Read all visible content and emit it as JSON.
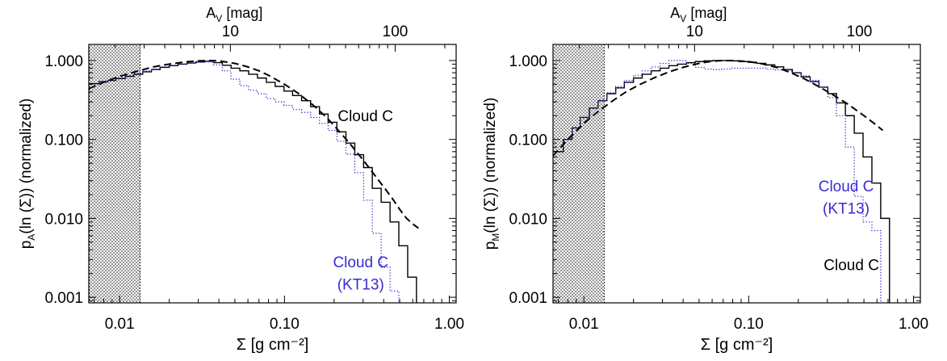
{
  "colors": {
    "axis": "#000000",
    "cloud": "#000000",
    "kt13": "#3a2bd6",
    "fit": "#000000",
    "hatch": "#000000"
  },
  "chart_data": [
    {
      "type": "line",
      "panel": "left",
      "xscale": "log",
      "yscale": "log",
      "xlim": [
        0.0065,
        1.1
      ],
      "ylim": [
        0.00085,
        1.6
      ],
      "xlabel": "Σ [g cm⁻²]",
      "ylabel_parts": {
        "p": "p",
        "sub": "A",
        "rest": "(ln (Σ)) (normalized)"
      },
      "top_xlabel_parts": {
        "a": "A",
        "sub": "V",
        "rest": " [mag]"
      },
      "xticks": [
        0.01,
        0.1,
        1.0
      ],
      "xtick_labels": [
        "0.01",
        "0.10",
        "1.00"
      ],
      "yticks": [
        0.001,
        0.01,
        0.1,
        1.0
      ],
      "ytick_labels": [
        "0.001",
        "0.010",
        "0.100",
        "1.000"
      ],
      "top_ticks": [
        10,
        100
      ],
      "top_tick_labels": [
        "10",
        "100"
      ],
      "av_per_sigma": 213,
      "shaded_region": [
        0.0065,
        0.0133
      ],
      "annotations": [
        {
          "text": "Cloud C",
          "x": 0.31,
          "y": 0.17,
          "color": "cloud"
        },
        {
          "text": "Cloud C",
          "x": 0.29,
          "y": 0.0024,
          "color": "kt13"
        },
        {
          "text": "(KT13)",
          "x": 0.29,
          "y": 0.00125,
          "color": "kt13"
        }
      ],
      "series": [
        {
          "name": "Cloud C",
          "style": "step-solid",
          "color": "cloud",
          "x": [
            0.0065,
            0.0075,
            0.0085,
            0.0095,
            0.0108,
            0.0122,
            0.0138,
            0.0156,
            0.0176,
            0.02,
            0.0226,
            0.0256,
            0.029,
            0.0328,
            0.037,
            0.042,
            0.0474,
            0.0536,
            0.0606,
            0.0686,
            0.0776,
            0.0878,
            0.0993,
            0.112,
            0.127,
            0.144,
            0.163,
            0.184,
            0.208,
            0.236,
            0.267,
            0.302,
            0.341,
            0.386,
            0.437,
            0.494,
            0.559,
            0.632
          ],
          "y": [
            0.51,
            0.54,
            0.56,
            0.59,
            0.63,
            0.67,
            0.72,
            0.77,
            0.82,
            0.86,
            0.9,
            0.93,
            0.96,
            0.98,
            0.94,
            0.87,
            0.8,
            0.74,
            0.67,
            0.6,
            0.53,
            0.47,
            0.41,
            0.36,
            0.31,
            0.26,
            0.21,
            0.165,
            0.125,
            0.09,
            0.064,
            0.044,
            0.024,
            0.016,
            0.009,
            0.0045,
            0.0018,
            0.0008
          ]
        },
        {
          "name": "Cloud C (KT13)",
          "style": "step-dotted",
          "color": "kt13",
          "x": [
            0.0065,
            0.0075,
            0.0085,
            0.0095,
            0.0108,
            0.0122,
            0.0138,
            0.0156,
            0.0176,
            0.02,
            0.0226,
            0.0256,
            0.029,
            0.0328,
            0.037,
            0.042,
            0.0474,
            0.0536,
            0.0606,
            0.0686,
            0.0776,
            0.0878,
            0.0993,
            0.112,
            0.127,
            0.144,
            0.163,
            0.184,
            0.208,
            0.236,
            0.267,
            0.302,
            0.341,
            0.386,
            0.437,
            0.494
          ],
          "y": [
            0.5,
            0.53,
            0.56,
            0.6,
            0.64,
            0.69,
            0.74,
            0.78,
            0.83,
            0.87,
            0.9,
            0.93,
            0.95,
            0.96,
            0.88,
            0.74,
            0.58,
            0.48,
            0.42,
            0.38,
            0.33,
            0.3,
            0.27,
            0.24,
            0.22,
            0.19,
            0.16,
            0.13,
            0.095,
            0.065,
            0.038,
            0.017,
            0.0065,
            0.0024,
            0.0012,
            0.0008
          ]
        },
        {
          "name": "fit",
          "style": "dashed",
          "color": "fit",
          "x": [
            0.0065,
            0.008,
            0.01,
            0.013,
            0.016,
            0.02,
            0.025,
            0.03,
            0.035,
            0.04,
            0.05,
            0.06,
            0.07,
            0.08,
            0.1,
            0.12,
            0.15,
            0.18,
            0.2,
            0.25,
            0.3,
            0.35,
            0.4,
            0.45,
            0.5,
            0.55,
            0.6,
            0.65
          ],
          "y": [
            0.44,
            0.53,
            0.63,
            0.74,
            0.83,
            0.9,
            0.96,
            0.99,
            1.0,
            0.99,
            0.92,
            0.83,
            0.74,
            0.65,
            0.5,
            0.39,
            0.27,
            0.19,
            0.15,
            0.088,
            0.055,
            0.036,
            0.025,
            0.018,
            0.013,
            0.01,
            0.0085,
            0.0075
          ]
        }
      ]
    },
    {
      "type": "line",
      "panel": "right",
      "xscale": "log",
      "yscale": "log",
      "xlim": [
        0.0065,
        1.1
      ],
      "ylim": [
        0.00085,
        1.6
      ],
      "xlabel": "Σ [g cm⁻²]",
      "ylabel_parts": {
        "p": "p",
        "sub": "M",
        "rest": "(ln (Σ)) (normalized)"
      },
      "top_xlabel_parts": {
        "a": "A",
        "sub": "V",
        "rest": " [mag]"
      },
      "xticks": [
        0.01,
        0.1,
        1.0
      ],
      "xtick_labels": [
        "0.01",
        "0.10",
        "1.00"
      ],
      "yticks": [
        0.001,
        0.01,
        0.1,
        1.0
      ],
      "ytick_labels": [
        "0.001",
        "0.010",
        "0.100",
        "1.000"
      ],
      "top_ticks": [
        10,
        100
      ],
      "top_tick_labels": [
        "10",
        "100"
      ],
      "av_per_sigma": 213,
      "shaded_region": [
        0.0065,
        0.0133
      ],
      "annotations": [
        {
          "text": "Cloud C",
          "x": 0.39,
          "y": 0.022,
          "color": "kt13"
        },
        {
          "text": "(KT13)",
          "x": 0.39,
          "y": 0.0115,
          "color": "kt13"
        },
        {
          "text": "Cloud C",
          "x": 0.42,
          "y": 0.0022,
          "color": "cloud"
        }
      ],
      "series": [
        {
          "name": "Cloud C",
          "style": "step-solid",
          "color": "cloud",
          "x": [
            0.0065,
            0.0075,
            0.0085,
            0.0095,
            0.0108,
            0.0122,
            0.0138,
            0.0156,
            0.0176,
            0.02,
            0.0226,
            0.0256,
            0.029,
            0.0328,
            0.037,
            0.042,
            0.0474,
            0.0536,
            0.0606,
            0.0686,
            0.0776,
            0.0878,
            0.0993,
            0.112,
            0.127,
            0.144,
            0.163,
            0.184,
            0.208,
            0.236,
            0.267,
            0.302,
            0.341,
            0.386,
            0.437,
            0.494,
            0.559,
            0.632
          ],
          "y": [
            0.07,
            0.1,
            0.14,
            0.19,
            0.25,
            0.31,
            0.38,
            0.45,
            0.53,
            0.6,
            0.67,
            0.74,
            0.8,
            0.86,
            0.9,
            0.94,
            0.97,
            0.99,
            1.0,
            1.0,
            0.99,
            0.97,
            0.95,
            0.92,
            0.88,
            0.83,
            0.77,
            0.7,
            0.62,
            0.54,
            0.46,
            0.38,
            0.29,
            0.2,
            0.12,
            0.06,
            0.028,
            0.01
          ]
        },
        {
          "name": "Cloud C (KT13)",
          "style": "step-dotted",
          "color": "kt13",
          "x": [
            0.0065,
            0.0075,
            0.0085,
            0.0095,
            0.0108,
            0.0122,
            0.0138,
            0.0156,
            0.0176,
            0.02,
            0.0226,
            0.0256,
            0.029,
            0.0328,
            0.037,
            0.042,
            0.0474,
            0.0536,
            0.0606,
            0.0686,
            0.0776,
            0.0878,
            0.0993,
            0.112,
            0.127,
            0.144,
            0.163,
            0.184,
            0.208,
            0.236,
            0.267,
            0.302,
            0.341,
            0.386,
            0.437,
            0.494,
            0.559
          ],
          "y": [
            0.07,
            0.1,
            0.14,
            0.19,
            0.25,
            0.31,
            0.39,
            0.47,
            0.56,
            0.65,
            0.74,
            0.83,
            0.92,
            1.0,
            1.0,
            0.92,
            0.82,
            0.78,
            0.77,
            0.78,
            0.8,
            0.8,
            0.8,
            0.8,
            0.78,
            0.76,
            0.74,
            0.7,
            0.64,
            0.56,
            0.46,
            0.34,
            0.2,
            0.08,
            0.019,
            0.009,
            0.007
          ]
        },
        {
          "name": "fit",
          "style": "dashed",
          "color": "fit",
          "x": [
            0.0065,
            0.008,
            0.01,
            0.012,
            0.015,
            0.018,
            0.022,
            0.027,
            0.033,
            0.04,
            0.05,
            0.06,
            0.07,
            0.08,
            0.1,
            0.12,
            0.15,
            0.18,
            0.22,
            0.27,
            0.33,
            0.4,
            0.5,
            0.6,
            0.65
          ],
          "y": [
            0.062,
            0.1,
            0.16,
            0.22,
            0.31,
            0.4,
            0.5,
            0.61,
            0.72,
            0.82,
            0.92,
            0.98,
            1.0,
            1.0,
            0.97,
            0.91,
            0.81,
            0.7,
            0.58,
            0.46,
            0.36,
            0.28,
            0.2,
            0.15,
            0.13
          ]
        }
      ]
    }
  ]
}
